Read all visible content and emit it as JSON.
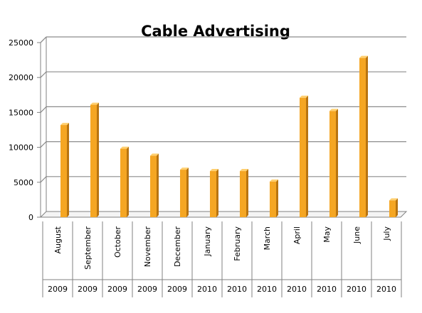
{
  "chart_data": {
    "type": "bar",
    "title": "Cable Advertising",
    "xlabel": "",
    "ylabel": "",
    "categories": [
      "August",
      "September",
      "October",
      "November",
      "December",
      "January",
      "February",
      "March",
      "April",
      "May",
      "June",
      "July"
    ],
    "years": [
      "2009",
      "2009",
      "2009",
      "2009",
      "2009",
      "2010",
      "2010",
      "2010",
      "2010",
      "2010",
      "2010",
      "2010"
    ],
    "values": [
      13200,
      16100,
      9800,
      8800,
      6800,
      6600,
      6600,
      5100,
      17100,
      15200,
      22800,
      2400
    ],
    "ylim": [
      0,
      25000
    ],
    "yticks": [
      0,
      5000,
      10000,
      15000,
      20000,
      25000
    ],
    "grid": true,
    "legend": "none",
    "bar_color": "#F5A623",
    "bar_side_color": "#B87410",
    "bar_top_color": "#FFD071",
    "gridline_color": "#8C8C8C"
  }
}
